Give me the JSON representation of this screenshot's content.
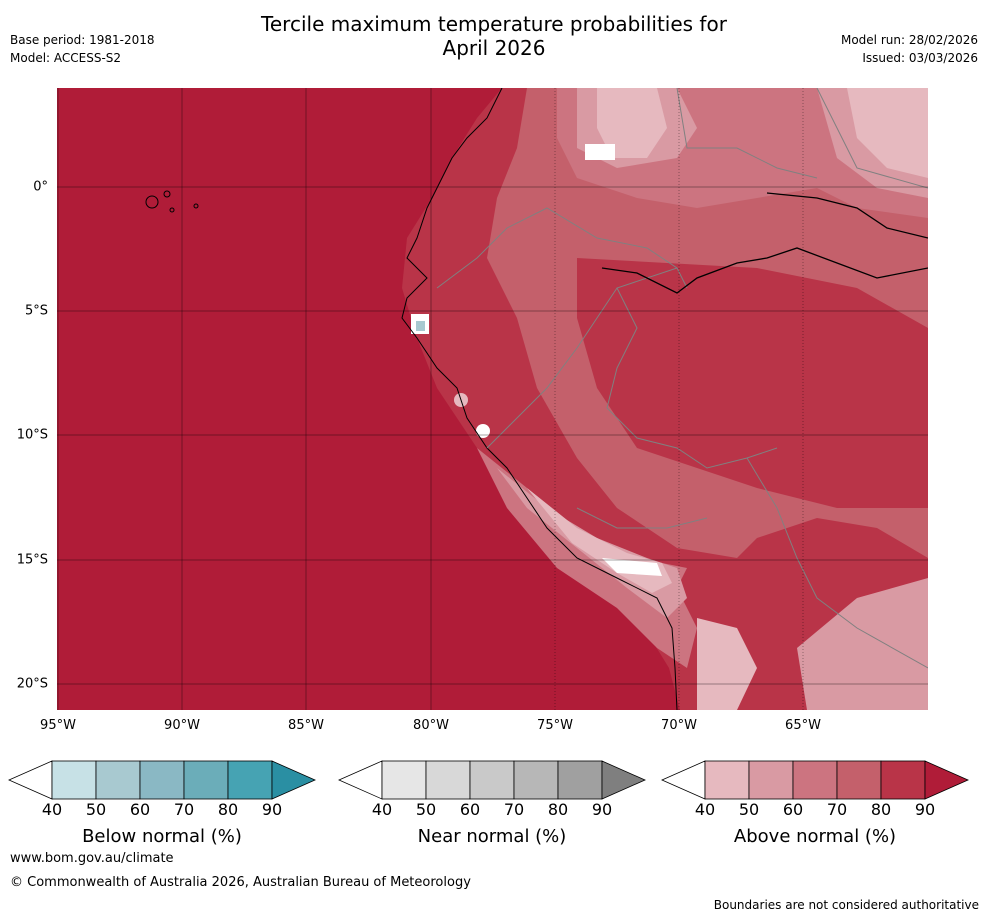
{
  "header": {
    "title_line1": "Tercile maximum temperature probabilities for",
    "title_line2": "April 2026",
    "base_period": "Base period: 1981-2018",
    "model": "Model: ACCESS-S2",
    "model_run": "Model run: 28/02/2026",
    "issued": "Issued: 03/03/2026"
  },
  "map": {
    "region": "Western South America and eastern Pacific (Galapagos to northern Chile)",
    "lat_labels": [
      "0°",
      "5°S",
      "10°S",
      "15°S",
      "20°S"
    ],
    "lon_labels": [
      "95°W",
      "90°W",
      "85°W",
      "80°W",
      "75°W",
      "70°W",
      "65°W"
    ],
    "icons": {
      "coast": "coastline-icon",
      "border": "country-border-icon"
    }
  },
  "colorbars": [
    {
      "key": "below",
      "title": "Below normal (%)",
      "ticks": [
        "40",
        "50",
        "60",
        "70",
        "80",
        "90"
      ],
      "colors": [
        "#ffffff",
        "#c7e1e6",
        "#a8c9d0",
        "#8ab8c4",
        "#6badb9",
        "#46a3b3",
        "#2a8fa3"
      ]
    },
    {
      "key": "near",
      "title": "Near normal (%)",
      "ticks": [
        "40",
        "50",
        "60",
        "70",
        "80",
        "90"
      ],
      "colors": [
        "#ffffff",
        "#e6e6e6",
        "#d8d8d8",
        "#c9c9c9",
        "#b7b7b7",
        "#a0a0a0",
        "#7f7f7f"
      ]
    },
    {
      "key": "above",
      "title": "Above normal (%)",
      "ticks": [
        "40",
        "50",
        "60",
        "70",
        "80",
        "90"
      ],
      "colors": [
        "#ffffff",
        "#e6b9bf",
        "#d99aa3",
        "#cc7480",
        "#c4606b",
        "#b93448",
        "#b01c38"
      ]
    }
  ],
  "footer": {
    "website": "www.bom.gov.au/climate",
    "copyright": "© Commonwealth of Australia 2026, Australian Bureau of Meteorology",
    "disclaimer": "Boundaries are not considered authoritative"
  }
}
